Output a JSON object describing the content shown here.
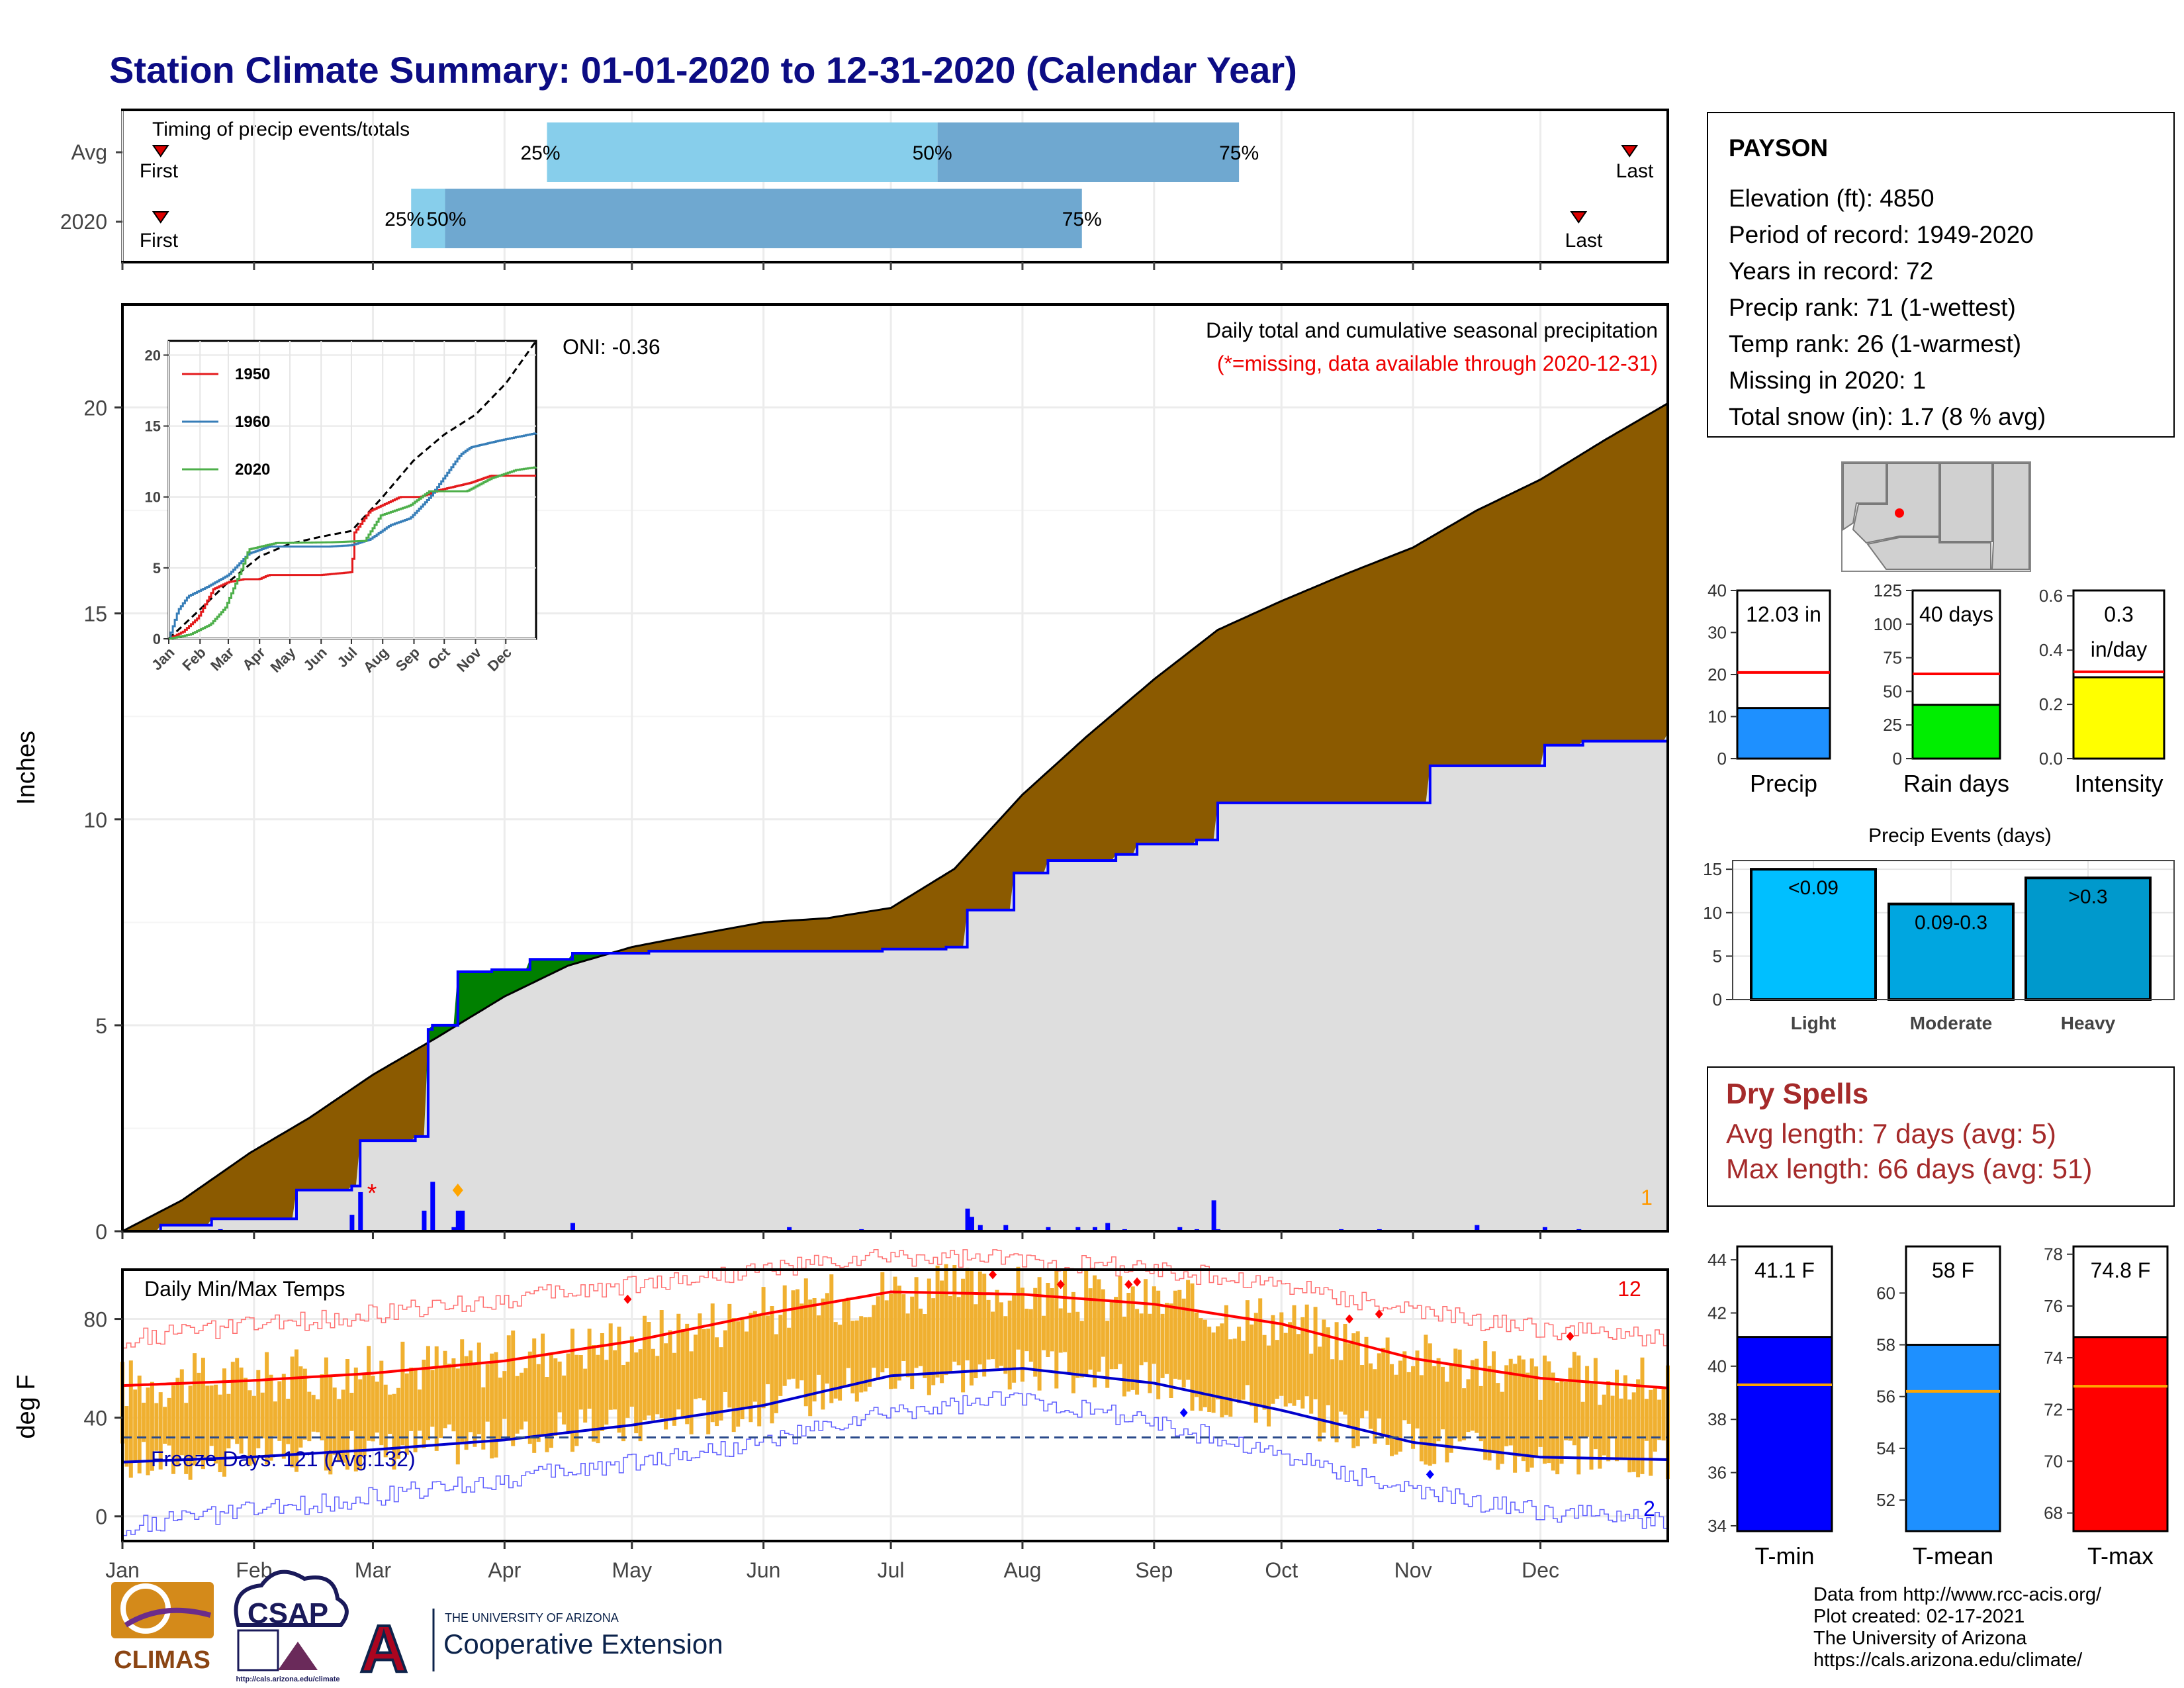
{
  "title": "Station Climate Summary: 01-01-2020 to 12-31-2020 (Calendar Year)",
  "timing": {
    "title": "Timing of precip events/totals",
    "rows": [
      {
        "label": "Avg",
        "first": "First",
        "last": "Last",
        "first_doy": 10,
        "last_doy": 356,
        "p25_doy": 101,
        "p50_doy": 193,
        "p75_doy": 264
      },
      {
        "label": "2020",
        "first": "First",
        "last": "Last",
        "first_doy": 10,
        "last_doy": 344,
        "p25_doy": 69,
        "p50_doy": 77,
        "p75_doy": 227
      }
    ],
    "pct_labels": [
      "25%",
      "50%",
      "75%"
    ],
    "colors": {
      "first_half": "#87ceeb",
      "second_half": "#6fa8d0",
      "marker": "#dd0000"
    }
  },
  "precip": {
    "ylabel": "Inches",
    "yticks": [
      0,
      5,
      10,
      15,
      20
    ],
    "ylim": [
      0,
      22.5
    ],
    "title": "Daily total and cumulative seasonal precipitation",
    "missing_note": "(*=missing, data available through 2020-12-31)",
    "oni": "ONI: -0.36",
    "missing_count": "1",
    "colors": {
      "avg_fill": "#8b5a00",
      "deficit": "#8b5a00",
      "surplus": "#008000",
      "year_line": "#0000ff",
      "year_fill": "#dedede",
      "daily": "#0000ff"
    }
  },
  "chart_data": [
    {
      "type": "area",
      "name": "cumulative-precip",
      "x_unit": "day of year",
      "series": [
        {
          "name": "Avg",
          "x": [
            1,
            15,
            31,
            45,
            60,
            75,
            91,
            106,
            121,
            136,
            152,
            167,
            182,
            197,
            213,
            228,
            244,
            259,
            274,
            289,
            305,
            320,
            335,
            350,
            365
          ],
          "values": [
            0,
            0.75,
            1.9,
            2.75,
            3.8,
            4.7,
            5.7,
            6.45,
            6.9,
            7.2,
            7.5,
            7.6,
            7.85,
            8.8,
            10.6,
            12.0,
            13.4,
            14.6,
            15.3,
            15.95,
            16.6,
            17.5,
            18.25,
            19.2,
            20.1
          ]
        },
        {
          "name": "2020",
          "x": [
            1,
            10,
            22,
            42,
            55,
            57,
            70,
            73,
            74,
            80,
            88,
            97,
            107,
            125,
            160,
            180,
            195,
            200,
            211,
            219,
            235,
            240,
            254,
            259,
            296,
            309,
            320,
            336,
            345,
            365
          ],
          "values": [
            0,
            0.15,
            0.3,
            1.0,
            1.1,
            2.2,
            2.3,
            4.9,
            5.0,
            6.3,
            6.35,
            6.6,
            6.75,
            6.8,
            6.8,
            6.85,
            6.9,
            7.8,
            8.7,
            9.0,
            9.15,
            9.4,
            9.5,
            10.4,
            10.4,
            11.3,
            11.3,
            11.8,
            11.9,
            12.1
          ]
        }
      ],
      "daily_precip": {
        "x": [
          24,
          55,
          57,
          72,
          74,
          79,
          80,
          81,
          107,
          158,
          175,
          200,
          201,
          203,
          209,
          219,
          226,
          230,
          233,
          237,
          250,
          254,
          258,
          259,
          288,
          297,
          320,
          336,
          344
        ],
        "values": [
          0.05,
          0.4,
          0.95,
          0.5,
          1.2,
          0.1,
          0.5,
          0.5,
          0.2,
          0.1,
          0.05,
          0.55,
          0.35,
          0.15,
          0.15,
          0.1,
          0.1,
          0.1,
          0.2,
          0.05,
          0.1,
          0.05,
          0.75,
          0.05,
          0.05,
          0.05,
          0.15,
          0.1,
          0.05
        ]
      },
      "xticks": [
        "Jan",
        "Feb",
        "Mar",
        "Apr",
        "May",
        "Jun",
        "Jul",
        "Aug",
        "Sep",
        "Oct",
        "Nov",
        "Dec"
      ]
    },
    {
      "type": "line",
      "name": "inset-cumulative-years",
      "yticks": [
        0,
        5,
        10,
        15,
        20
      ],
      "ylim": [
        0,
        21
      ],
      "xticks": [
        "Jan",
        "Feb",
        "Mar",
        "Apr",
        "May",
        "Jun",
        "Jul",
        "Aug",
        "Sep",
        "Oct",
        "Nov",
        "Dec"
      ],
      "series": [
        {
          "name": "avg",
          "color": "#000000",
          "dash": true,
          "x": [
            1,
            31,
            60,
            91,
            121,
            152,
            182,
            213,
            244,
            274,
            305,
            335,
            365
          ],
          "values": [
            0,
            2,
            4,
            5.8,
            6.7,
            7.2,
            7.6,
            10,
            12.6,
            14.4,
            15.8,
            18,
            21
          ]
        },
        {
          "name": "1950",
          "color": "#e41a1c",
          "x": [
            1,
            15,
            30,
            45,
            60,
            75,
            90,
            100,
            152,
            182,
            185,
            200,
            230,
            250,
            270,
            300,
            320,
            365
          ],
          "values": [
            0,
            0.5,
            1.5,
            3.5,
            4,
            4.2,
            4.2,
            4.5,
            4.5,
            4.7,
            7.5,
            9,
            10,
            10,
            10.5,
            11,
            11.5,
            11.5
          ]
        },
        {
          "name": "1960",
          "color": "#377eb8",
          "x": [
            1,
            10,
            20,
            40,
            60,
            80,
            100,
            130,
            160,
            182,
            200,
            220,
            240,
            260,
            270,
            290,
            300,
            330,
            365
          ],
          "values": [
            0,
            2,
            3,
            3.7,
            4.5,
            6,
            6.5,
            6.5,
            6.5,
            6.6,
            7,
            8,
            8.5,
            10,
            11,
            13,
            13.5,
            14,
            14.5
          ]
        },
        {
          "name": "2020",
          "color": "#4daf4a",
          "x": [
            1,
            22,
            42,
            57,
            73,
            80,
            107,
            160,
            195,
            211,
            240,
            259,
            296,
            320,
            345,
            365
          ],
          "values": [
            0,
            0.3,
            1,
            2.2,
            4.9,
            6.3,
            6.75,
            6.8,
            6.9,
            8.7,
            9.4,
            10.4,
            10.4,
            11.3,
            11.9,
            12.1
          ]
        }
      ]
    },
    {
      "type": "bar",
      "name": "precip-total",
      "categories": [
        "Precip"
      ],
      "values": [
        12.03
      ],
      "avg": 20.5,
      "yticks": [
        0,
        10,
        20,
        30,
        40
      ],
      "ylim": [
        0,
        40
      ],
      "label": "12.03 in",
      "color": "#1e90ff"
    },
    {
      "type": "bar",
      "name": "rain-days",
      "categories": [
        "Rain days"
      ],
      "values": [
        40
      ],
      "avg": 63,
      "yticks": [
        0,
        25,
        50,
        75,
        100,
        125
      ],
      "ylim": [
        0,
        125
      ],
      "label": "40 days",
      "color": "#00ee00"
    },
    {
      "type": "bar",
      "name": "intensity",
      "categories": [
        "Intensity"
      ],
      "values": [
        0.3
      ],
      "avg": 0.32,
      "yticks": [
        0.0,
        0.2,
        0.4,
        0.6
      ],
      "ylim": [
        0,
        0.62
      ],
      "label": "0.3",
      "label2": "in/day",
      "color": "#ffff00"
    },
    {
      "type": "bar",
      "name": "precip-events",
      "title": "Precip Events (days)",
      "categories": [
        "Light",
        "Moderate",
        "Heavy"
      ],
      "values": [
        15,
        11,
        14
      ],
      "value_labels": [
        "<0.09",
        "0.09-0.3",
        ">0.3"
      ],
      "yticks": [
        0,
        5,
        10,
        15
      ],
      "ylim": [
        0,
        16
      ],
      "colors": [
        "#00bfff",
        "#00a6e0",
        "#0099cc"
      ]
    },
    {
      "type": "line",
      "name": "daily-temps",
      "title": "Daily Min/Max Temps",
      "ylabel": "deg F",
      "yticks": [
        0,
        40,
        80
      ],
      "ylim": [
        -10,
        100
      ],
      "freeze_line": 32,
      "freeze_text": "Freeze Days: 121 (Avg:132)",
      "record_high_count": "12",
      "record_low_count": "2",
      "series": [
        {
          "name": "avg-max",
          "color": "#ff0000",
          "x": [
            1,
            31,
            60,
            91,
            121,
            152,
            182,
            213,
            244,
            274,
            305,
            335,
            365
          ],
          "values": [
            53,
            55,
            58,
            63,
            71,
            82,
            91,
            90,
            86,
            78,
            64,
            56,
            52
          ]
        },
        {
          "name": "avg-min",
          "color": "#0000cc",
          "x": [
            1,
            31,
            60,
            91,
            121,
            152,
            182,
            213,
            244,
            274,
            305,
            335,
            365
          ],
          "values": [
            22,
            24,
            27,
            31,
            37,
            45,
            57,
            60,
            54,
            43,
            30,
            24,
            23
          ]
        },
        {
          "name": "record-max",
          "color": "#ff7070",
          "x": [
            1,
            31,
            60,
            91,
            121,
            152,
            182,
            213,
            244,
            274,
            305,
            335,
            365
          ],
          "values": [
            72,
            77,
            82,
            88,
            94,
            100,
            105,
            104,
            100,
            94,
            83,
            76,
            72
          ]
        },
        {
          "name": "record-min",
          "color": "#6060ff",
          "x": [
            1,
            31,
            60,
            91,
            121,
            152,
            182,
            213,
            244,
            274,
            305,
            335,
            365
          ],
          "values": [
            -4,
            2,
            8,
            15,
            22,
            30,
            42,
            48,
            38,
            25,
            10,
            2,
            -2
          ]
        }
      ]
    },
    {
      "type": "bar",
      "name": "tmin",
      "categories": [
        "T-min"
      ],
      "values": [
        41.1
      ],
      "avg": 39.3,
      "yticks": [
        34,
        36,
        38,
        40,
        42,
        44
      ],
      "ylim": [
        33.8,
        44.5
      ],
      "label": "41.1 F",
      "color": "#0000ff"
    },
    {
      "type": "bar",
      "name": "tmean",
      "categories": [
        "T-mean"
      ],
      "values": [
        58
      ],
      "avg": 56.2,
      "yticks": [
        52,
        54,
        56,
        58,
        60
      ],
      "ylim": [
        50.8,
        61.8
      ],
      "label": "58 F",
      "color": "#1e90ff"
    },
    {
      "type": "bar",
      "name": "tmax",
      "categories": [
        "T-max"
      ],
      "values": [
        74.8
      ],
      "avg": 72.9,
      "yticks": [
        68,
        70,
        72,
        74,
        76,
        78
      ],
      "ylim": [
        67.3,
        78.3
      ],
      "label": "74.8 F",
      "color": "#ff0000"
    }
  ],
  "station": {
    "name": "PAYSON",
    "lines": [
      "Elevation (ft): 4850",
      "Period of record: 1949-2020",
      "Years in record: 72",
      "Precip rank: 71 (1-wettest)",
      "Temp rank: 26 (1-warmest)",
      "Missing in 2020: 1",
      "Total snow (in): 1.7 (8 % avg)"
    ]
  },
  "dry_spells": {
    "title": "Dry Spells",
    "avg_line": "Avg length: 7 days (avg: 5)",
    "max_line": "Max length: 66 days (avg: 51)",
    "color": "#a52a2a"
  },
  "months": [
    "Jan",
    "Feb",
    "Mar",
    "Apr",
    "May",
    "Jun",
    "Jul",
    "Aug",
    "Sep",
    "Oct",
    "Nov",
    "Dec"
  ],
  "credits": [
    "Data from http://www.rcc-acis.org/",
    "Plot created: 02-17-2021",
    "The University of Arizona",
    "https://cals.arizona.edu/climate/"
  ],
  "logos": {
    "climas": "CLIMAS",
    "csap": "CSAP",
    "csap_url": "http://cals.arizona.edu/climate",
    "ua_small": "THE UNIVERSITY OF ARIZONA",
    "ua_big": "Cooperative Extension",
    "ua_letter": "A"
  }
}
